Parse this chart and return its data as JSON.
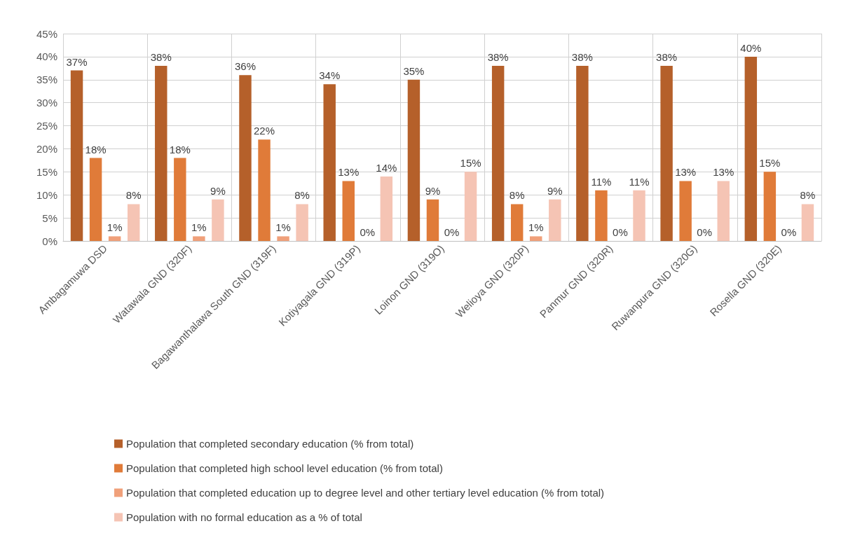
{
  "chart_data": {
    "type": "bar",
    "categories": [
      "Ambagamuwa DSD",
      "Watawala GND (320F)",
      "Bagawanthalawa South GND (319F)",
      "Kotiyagala GND (319P)",
      "Loinon GND (319O)",
      "Welioya GND (320P)",
      "Panmur GND (320R)",
      "Ruwanpura GND (320G)",
      "Rosella GND (320E)"
    ],
    "series": [
      {
        "name": "Population that completed secondary education (% from total)",
        "color": "#b5602a",
        "values": [
          37,
          38,
          36,
          34,
          35,
          38,
          38,
          38,
          40
        ],
        "value_labels": [
          "37%",
          "38%",
          "36%",
          "34%",
          "35%",
          "38%",
          "38%",
          "38%",
          "40%"
        ]
      },
      {
        "name": "Population that completed high school level education (% from total)",
        "color": "#e07b39",
        "values": [
          18,
          18,
          22,
          13,
          9,
          8,
          11,
          13,
          15
        ],
        "value_labels": [
          "18%",
          "18%",
          "22%",
          "13%",
          "9%",
          "8%",
          "11%",
          "13%",
          "15%"
        ]
      },
      {
        "name": "Population that completed education up to degree level and other tertiary level education (% from total)",
        "color": "#f0a07a",
        "values": [
          1,
          1,
          1,
          0,
          0,
          1,
          0,
          0,
          0
        ],
        "value_labels": [
          "1%",
          "1%",
          "1%",
          "0%",
          "0%",
          "1%",
          "0%",
          "0%",
          "0%"
        ]
      },
      {
        "name": "Population with no formal education as a % of total",
        "color": "#f5c4b4",
        "values": [
          8,
          9,
          8,
          14,
          15,
          9,
          11,
          13,
          8
        ],
        "value_labels": [
          "8%",
          "9%",
          "8%",
          "14%",
          "15%",
          "9%",
          "11%",
          "13%",
          "8%"
        ]
      }
    ],
    "ylim": [
      0,
      45
    ],
    "yticks": [
      {
        "value": 0,
        "label": "0%"
      },
      {
        "value": 5,
        "label": "5%"
      },
      {
        "value": 10,
        "label": "10%"
      },
      {
        "value": 15,
        "label": "15%"
      },
      {
        "value": 20,
        "label": "20%"
      },
      {
        "value": 25,
        "label": "25%"
      },
      {
        "value": 30,
        "label": "30%"
      },
      {
        "value": 35,
        "label": "35%"
      },
      {
        "value": 40,
        "label": "40%"
      },
      {
        "value": 45,
        "label": "45%"
      }
    ],
    "grid": true,
    "legend": "bottom"
  }
}
